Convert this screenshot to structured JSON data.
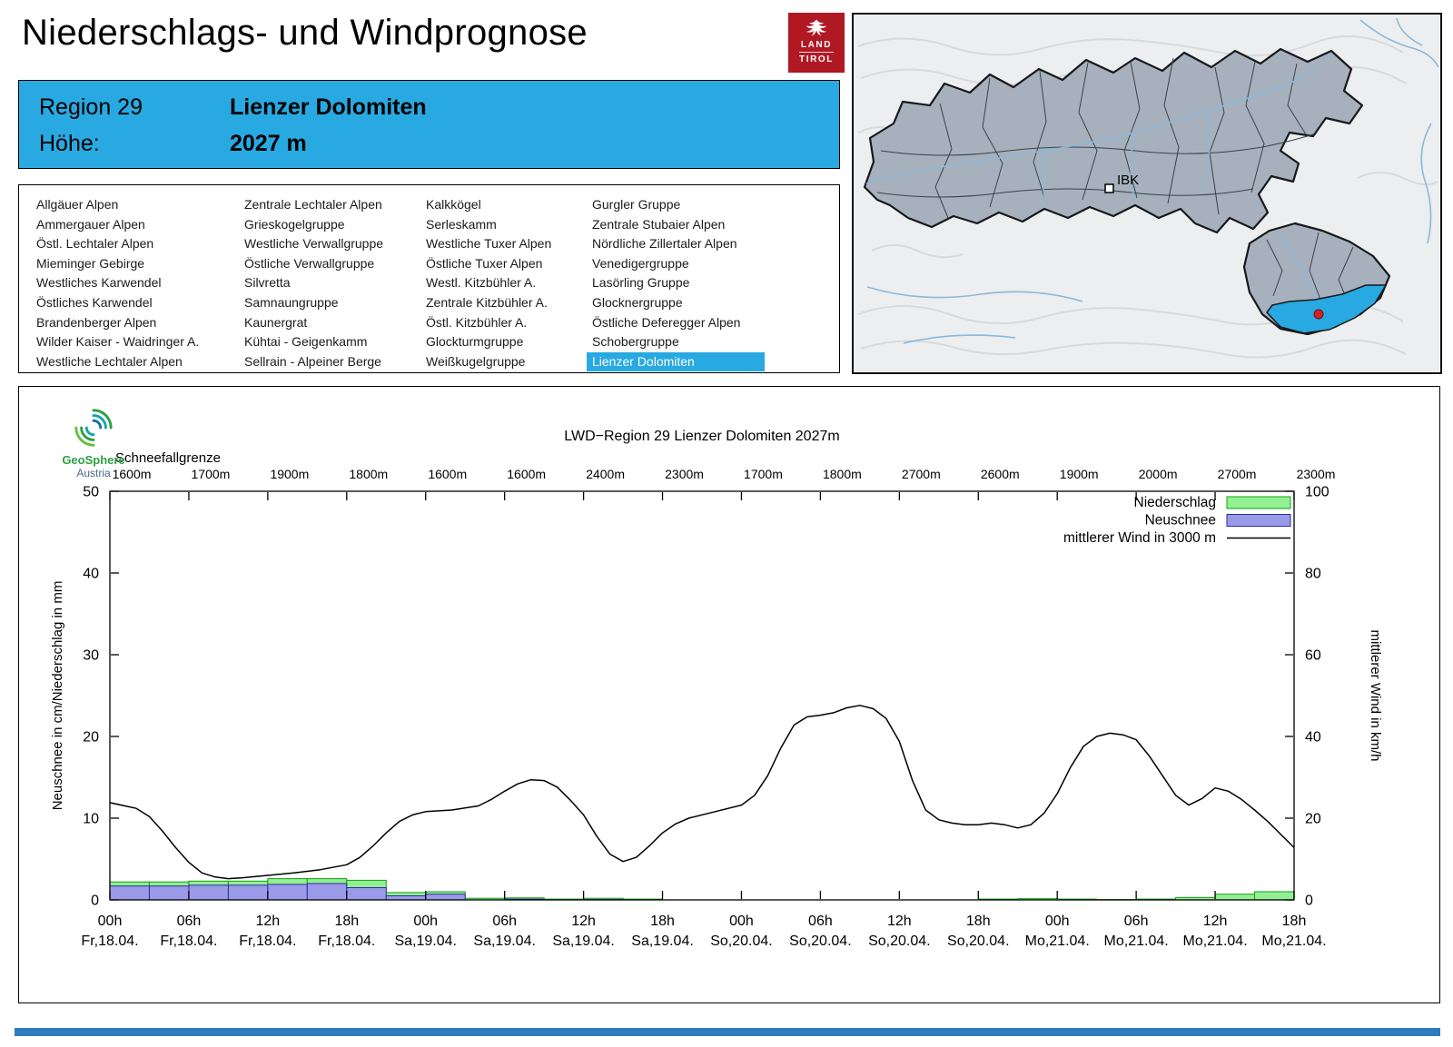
{
  "header": {
    "title": "Niederschlags- und Windprognose",
    "logo_land": "LAND",
    "logo_tirol": "TIROL"
  },
  "region_header": {
    "region_label": "Region 29",
    "region_name": "Lienzer Dolomiten",
    "altitude_label": "Höhe:",
    "altitude_value": "2027 m"
  },
  "map": {
    "marker_label": "IBK"
  },
  "region_list": {
    "selected": "Lienzer Dolomiten",
    "columns": [
      [
        "Allgäuer Alpen",
        "Ammergauer Alpen",
        "Östl. Lechtaler Alpen",
        "Mieminger Gebirge",
        "Westliches Karwendel",
        "Östliches Karwendel",
        "Brandenberger Alpen",
        "Wilder Kaiser - Waidringer A.",
        "Westliche Lechtaler Alpen"
      ],
      [
        "Zentrale Lechtaler Alpen",
        "Grieskogelgruppe",
        "Westliche Verwallgruppe",
        "Östliche Verwallgruppe",
        "Silvretta",
        "Samnaungruppe",
        "Kaunergrat",
        "Kühtai - Geigenkamm",
        "Sellrain - Alpeiner Berge"
      ],
      [
        "Kalkkögel",
        "Serleskamm",
        "Westliche Tuxer Alpen",
        "Östliche Tuxer Alpen",
        "Westl. Kitzbühler A.",
        "Zentrale Kitzbühler A.",
        "Östl. Kitzbühler A.",
        "Glockturmgruppe",
        "Weißkugelgruppe"
      ],
      [
        "Gurgler Gruppe",
        "Zentrale Stubaier Alpen",
        "Nördliche Zillertaler Alpen",
        "Venedigergruppe",
        "Lasörling Gruppe",
        "Glocknergruppe",
        "Östliche Deferegger Alpen",
        "Schobergruppe",
        "Lienzer Dolomiten"
      ]
    ]
  },
  "geosphere": {
    "name": "GeoSphere",
    "country": "Austria"
  },
  "chart_data": {
    "type": "bar+line",
    "title": "LWD−Region 29 Lienzer Dolomiten 2027m",
    "snowline_label": "Schneefallgrenze",
    "snowline_values": [
      "1600m",
      "1700m",
      "1900m",
      "1800m",
      "1600m",
      "1600m",
      "2400m",
      "2300m",
      "1700m",
      "1800m",
      "2700m",
      "2600m",
      "1900m",
      "2000m",
      "2700m",
      "2300m"
    ],
    "ylabel_left": "Neuschnee in cm/Niederschlag in mm",
    "ylabel_right": "mittlerer Wind in km/h",
    "ylim_left": [
      0,
      50
    ],
    "ylim_right": [
      0,
      100
    ],
    "yticks_left": [
      0,
      10,
      20,
      30,
      40,
      50
    ],
    "yticks_right": [
      0,
      20,
      40,
      60,
      80,
      100
    ],
    "x_range_hours": [
      0,
      90
    ],
    "bar_interval_hours": 3,
    "xticks": [
      {
        "h": "00h",
        "d": "Fr,18.04."
      },
      {
        "h": "06h",
        "d": "Fr,18.04."
      },
      {
        "h": "12h",
        "d": "Fr,18.04."
      },
      {
        "h": "18h",
        "d": "Fr,18.04."
      },
      {
        "h": "00h",
        "d": "Sa,19.04."
      },
      {
        "h": "06h",
        "d": "Sa,19.04."
      },
      {
        "h": "12h",
        "d": "Sa,19.04."
      },
      {
        "h": "18h",
        "d": "Sa,19.04."
      },
      {
        "h": "00h",
        "d": "So,20.04."
      },
      {
        "h": "06h",
        "d": "So,20.04."
      },
      {
        "h": "12h",
        "d": "So,20.04."
      },
      {
        "h": "18h",
        "d": "So,20.04."
      },
      {
        "h": "00h",
        "d": "Mo,21.04."
      },
      {
        "h": "06h",
        "d": "Mo,21.04."
      },
      {
        "h": "12h",
        "d": "Mo,21.04."
      },
      {
        "h": "18h",
        "d": "Mo,21.04."
      }
    ],
    "legend": [
      {
        "label": "Niederschlag",
        "type": "bar",
        "fill": "#92ef92",
        "border": "#14a014"
      },
      {
        "label": "Neuschnee",
        "type": "bar",
        "fill": "#9a9ae8",
        "border": "#2d2da0"
      },
      {
        "label": "mittlerer Wind in 3000 m",
        "type": "line",
        "color": "#000000"
      }
    ],
    "series": {
      "niederschlag_mm": [
        2.2,
        2.2,
        2.3,
        2.3,
        2.6,
        2.6,
        2.4,
        0.9,
        1.0,
        0.2,
        0.25,
        0.1,
        0.2,
        0.1,
        0,
        0,
        0,
        0,
        0,
        0,
        0,
        0,
        0.1,
        0.15,
        0.1,
        0.05,
        0.1,
        0.3,
        0.7,
        1.0
      ],
      "neuschnee_cm": [
        1.7,
        1.7,
        1.8,
        1.8,
        1.9,
        2.0,
        1.5,
        0.5,
        0.7,
        0,
        0.1,
        0,
        0.05,
        0,
        0,
        0,
        0,
        0,
        0,
        0,
        0,
        0,
        0,
        0,
        0,
        0,
        0,
        0,
        0,
        0
      ],
      "wind_kmh": [
        [
          0,
          23.8
        ],
        [
          2,
          22.4
        ],
        [
          3,
          20.4
        ],
        [
          4,
          16.8
        ],
        [
          5,
          12.8
        ],
        [
          6,
          9.2
        ],
        [
          7,
          6.6
        ],
        [
          8,
          5.6
        ],
        [
          9,
          5.2
        ],
        [
          10,
          5.4
        ],
        [
          12,
          6.0
        ],
        [
          14,
          6.6
        ],
        [
          16,
          7.4
        ],
        [
          18,
          8.6
        ],
        [
          19,
          10.4
        ],
        [
          20,
          13.2
        ],
        [
          21,
          16.4
        ],
        [
          22,
          19.2
        ],
        [
          23,
          20.8
        ],
        [
          24,
          21.6
        ],
        [
          26,
          22.0
        ],
        [
          28,
          23.0
        ],
        [
          29,
          24.6
        ],
        [
          30,
          26.6
        ],
        [
          31,
          28.4
        ],
        [
          32,
          29.4
        ],
        [
          33,
          29.2
        ],
        [
          34,
          27.6
        ],
        [
          35,
          24.4
        ],
        [
          36,
          20.8
        ],
        [
          37,
          15.6
        ],
        [
          38,
          11.2
        ],
        [
          39,
          9.4
        ],
        [
          40,
          10.4
        ],
        [
          41,
          13.2
        ],
        [
          42,
          16.4
        ],
        [
          43,
          18.6
        ],
        [
          44,
          20.0
        ],
        [
          46,
          21.6
        ],
        [
          48,
          23.2
        ],
        [
          49,
          25.6
        ],
        [
          50,
          30.4
        ],
        [
          51,
          37.2
        ],
        [
          52,
          42.8
        ],
        [
          53,
          44.8
        ],
        [
          54,
          45.2
        ],
        [
          55,
          45.8
        ],
        [
          56,
          47.0
        ],
        [
          57,
          47.6
        ],
        [
          58,
          46.8
        ],
        [
          59,
          44.4
        ],
        [
          60,
          38.8
        ],
        [
          61,
          29.2
        ],
        [
          62,
          22.0
        ],
        [
          63,
          19.6
        ],
        [
          64,
          18.8
        ],
        [
          65,
          18.4
        ],
        [
          66,
          18.4
        ],
        [
          67,
          18.8
        ],
        [
          68,
          18.4
        ],
        [
          69,
          17.6
        ],
        [
          70,
          18.4
        ],
        [
          71,
          21.2
        ],
        [
          72,
          26.0
        ],
        [
          73,
          32.4
        ],
        [
          74,
          37.6
        ],
        [
          75,
          40.0
        ],
        [
          76,
          40.8
        ],
        [
          77,
          40.4
        ],
        [
          78,
          39.2
        ],
        [
          79,
          35.2
        ],
        [
          80,
          30.4
        ],
        [
          81,
          25.6
        ],
        [
          82,
          23.2
        ],
        [
          83,
          24.8
        ],
        [
          84,
          27.4
        ],
        [
          85,
          26.6
        ],
        [
          86,
          24.6
        ],
        [
          87,
          22.0
        ],
        [
          88,
          19.2
        ],
        [
          89,
          16.0
        ],
        [
          90,
          12.8
        ]
      ]
    }
  },
  "colors": {
    "accent_blue": "#29a9e1",
    "footer_blue": "#2e7cbe",
    "tirol_red": "#b01824",
    "map_region_fill": "#a7b1bd",
    "map_selected_fill": "#29a9e1",
    "wind_line": "#000000"
  }
}
